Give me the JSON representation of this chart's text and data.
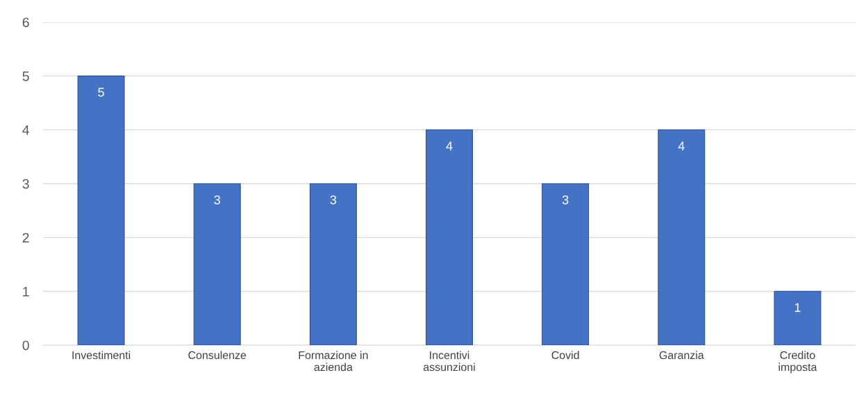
{
  "chart_data": {
    "type": "bar",
    "categories": [
      "Investimenti",
      "Consulenze",
      "Formazione in azienda",
      "Incentivi assunzioni",
      "Covid",
      "Garanzia",
      "Credito imposta"
    ],
    "values": [
      5,
      3,
      3,
      4,
      3,
      4,
      1
    ],
    "color": "#4472c4",
    "ylim": [
      0,
      6
    ],
    "yticks": [
      0,
      1,
      2,
      3,
      4,
      5,
      6
    ],
    "grid": "y",
    "data_labels": true,
    "legend": false
  }
}
